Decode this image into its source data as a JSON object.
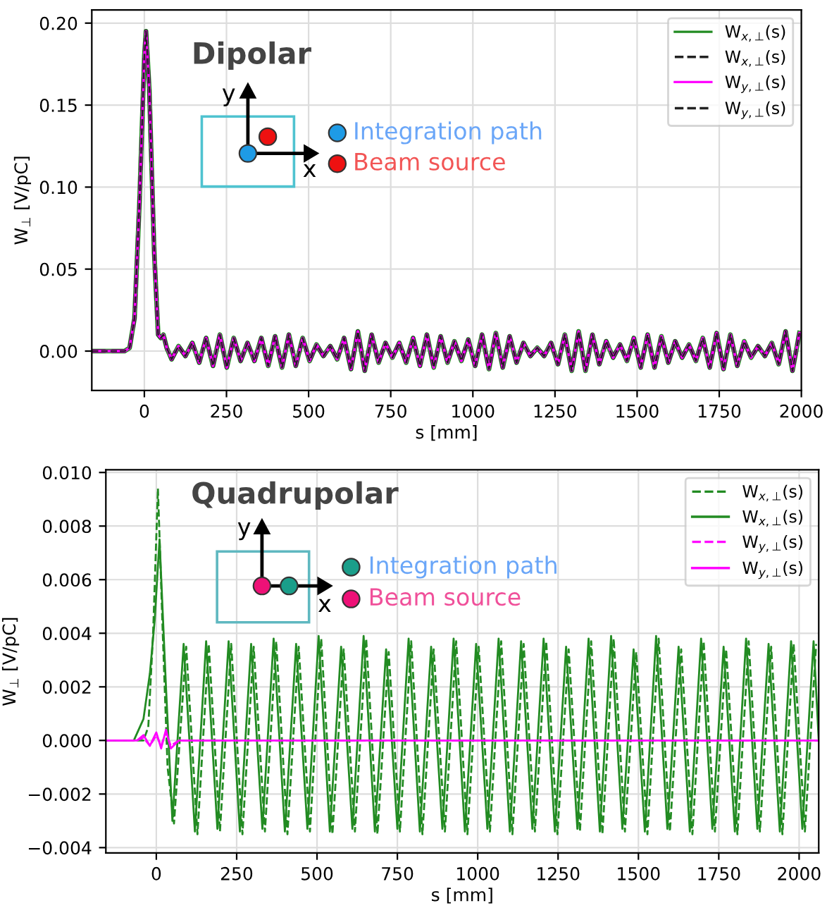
{
  "chart_data": [
    {
      "type": "line",
      "xlabel": "s [mm]",
      "ylabel": "W$_{⊥}$ [V/pC]",
      "annotations": [
        "Dipolar",
        "y",
        "x",
        "Integration path",
        "Beam source"
      ],
      "xlim": [
        -160,
        2000
      ],
      "ylim": [
        -0.024,
        0.208
      ],
      "xticks": [
        0,
        250,
        500,
        750,
        1000,
        1250,
        1500,
        1750,
        2000
      ],
      "yticks": [
        {
          "value": 0,
          "label": "0.00"
        },
        {
          "value": 0.05,
          "label": "0.05"
        },
        {
          "value": 0.1,
          "label": "0.10"
        },
        {
          "value": 0.15,
          "label": "0.15"
        },
        {
          "value": 0.2,
          "label": "0.20"
        }
      ],
      "grid": true,
      "legend": "top right",
      "x": [
        -160,
        -60,
        -45,
        -30,
        -15,
        0,
        5,
        15,
        30,
        42,
        50,
        58,
        68,
        83,
        104,
        125,
        146,
        167,
        188,
        209,
        230,
        251,
        272,
        293,
        314,
        335,
        356,
        377,
        398,
        419,
        440,
        461,
        482,
        503,
        524,
        545,
        566,
        587,
        608,
        629,
        650,
        671,
        692,
        713,
        734,
        755,
        776,
        797,
        818,
        839,
        860,
        881,
        902,
        923,
        944,
        965,
        986,
        1007,
        1028,
        1049,
        1070,
        1091,
        1112,
        1133,
        1154,
        1175,
        1196,
        1217,
        1238,
        1259,
        1280,
        1301,
        1322,
        1343,
        1364,
        1385,
        1406,
        1427,
        1448,
        1469,
        1490,
        1511,
        1532,
        1553,
        1574,
        1595,
        1616,
        1637,
        1658,
        1679,
        1700,
        1721,
        1742,
        1763,
        1784,
        1805,
        1826,
        1847,
        1868,
        1889,
        1910,
        1931,
        1952,
        1973,
        1994
      ],
      "series": [
        {
          "name": "W$_{x,⊥}$(s)",
          "color": "#228b22",
          "line_style": "solid",
          "values": [
            0,
            0,
            0.002,
            0.02,
            0.09,
            0.18,
            0.195,
            0.16,
            0.06,
            0.01,
            0.008,
            0.01,
            0.002,
            -0.005,
            0.003,
            -0.003,
            0.005,
            -0.007,
            0.008,
            -0.009,
            0.01,
            -0.01,
            0.008,
            -0.006,
            0.005,
            -0.006,
            0.008,
            -0.009,
            0.009,
            -0.01,
            0.01,
            -0.009,
            0.008,
            -0.006,
            0.004,
            -0.003,
            0.003,
            -0.005,
            0.008,
            -0.011,
            0.012,
            -0.012,
            0.01,
            -0.007,
            0.005,
            -0.004,
            0.005,
            -0.007,
            0.008,
            -0.009,
            0.01,
            -0.01,
            0.009,
            -0.007,
            0.006,
            -0.006,
            0.007,
            -0.009,
            0.01,
            -0.011,
            0.011,
            -0.01,
            0.009,
            -0.007,
            0.005,
            -0.003,
            0.002,
            -0.003,
            0.005,
            -0.008,
            0.01,
            -0.012,
            0.012,
            -0.012,
            0.01,
            -0.008,
            0.006,
            -0.004,
            0.004,
            -0.006,
            0.008,
            -0.01,
            0.01,
            -0.01,
            0.009,
            -0.007,
            0.006,
            -0.004,
            0.004,
            -0.006,
            0.008,
            -0.01,
            0.011,
            -0.011,
            0.01,
            -0.009,
            0.006,
            -0.004,
            0.003,
            -0.003,
            0.005,
            -0.008,
            0.012,
            -0.012,
            0.011
          ]
        },
        {
          "name": "W$_{x,⊥}$(s)",
          "color": "#222222",
          "line_style": "dashed",
          "values": [
            0,
            0,
            0.002,
            0.02,
            0.09,
            0.18,
            0.195,
            0.16,
            0.06,
            0.01,
            0.008,
            0.01,
            0.002,
            -0.005,
            0.003,
            -0.003,
            0.005,
            -0.007,
            0.008,
            -0.009,
            0.01,
            -0.01,
            0.008,
            -0.006,
            0.005,
            -0.006,
            0.008,
            -0.009,
            0.009,
            -0.01,
            0.01,
            -0.009,
            0.008,
            -0.006,
            0.004,
            -0.003,
            0.003,
            -0.005,
            0.008,
            -0.011,
            0.012,
            -0.012,
            0.01,
            -0.007,
            0.005,
            -0.004,
            0.005,
            -0.007,
            0.008,
            -0.009,
            0.01,
            -0.01,
            0.009,
            -0.007,
            0.006,
            -0.006,
            0.007,
            -0.009,
            0.01,
            -0.011,
            0.011,
            -0.01,
            0.009,
            -0.007,
            0.005,
            -0.003,
            0.002,
            -0.003,
            0.005,
            -0.008,
            0.01,
            -0.012,
            0.012,
            -0.012,
            0.01,
            -0.008,
            0.006,
            -0.004,
            0.004,
            -0.006,
            0.008,
            -0.01,
            0.01,
            -0.01,
            0.009,
            -0.007,
            0.006,
            -0.004,
            0.004,
            -0.006,
            0.008,
            -0.01,
            0.011,
            -0.011,
            0.01,
            -0.009,
            0.006,
            -0.004,
            0.003,
            -0.003,
            0.005,
            -0.008,
            0.012,
            -0.012,
            0.011
          ]
        },
        {
          "name": "W$_{y,⊥}$(s)",
          "color": "#ff00ff",
          "line_style": "solid",
          "values": [
            0,
            0,
            0.002,
            0.02,
            0.09,
            0.18,
            0.195,
            0.16,
            0.06,
            0.01,
            0.008,
            0.01,
            0.002,
            -0.005,
            0.003,
            -0.003,
            0.005,
            -0.007,
            0.008,
            -0.009,
            0.01,
            -0.01,
            0.008,
            -0.006,
            0.005,
            -0.006,
            0.008,
            -0.009,
            0.009,
            -0.01,
            0.01,
            -0.009,
            0.008,
            -0.006,
            0.004,
            -0.003,
            0.003,
            -0.005,
            0.008,
            -0.011,
            0.012,
            -0.012,
            0.01,
            -0.007,
            0.005,
            -0.004,
            0.005,
            -0.007,
            0.008,
            -0.009,
            0.01,
            -0.01,
            0.009,
            -0.007,
            0.006,
            -0.006,
            0.007,
            -0.009,
            0.01,
            -0.011,
            0.011,
            -0.01,
            0.009,
            -0.007,
            0.005,
            -0.003,
            0.002,
            -0.003,
            0.005,
            -0.008,
            0.01,
            -0.012,
            0.012,
            -0.012,
            0.01,
            -0.008,
            0.006,
            -0.004,
            0.004,
            -0.006,
            0.008,
            -0.01,
            0.01,
            -0.01,
            0.009,
            -0.007,
            0.006,
            -0.004,
            0.004,
            -0.006,
            0.008,
            -0.01,
            0.011,
            -0.011,
            0.01,
            -0.009,
            0.006,
            -0.004,
            0.003,
            -0.003,
            0.005,
            -0.008,
            0.012,
            -0.012,
            0.011
          ]
        },
        {
          "name": "W$_{y,⊥}$(s)",
          "color": "#222222",
          "line_style": "dashed",
          "values": [
            0,
            0,
            0.002,
            0.02,
            0.09,
            0.18,
            0.195,
            0.16,
            0.06,
            0.01,
            0.008,
            0.01,
            0.002,
            -0.005,
            0.003,
            -0.003,
            0.005,
            -0.007,
            0.008,
            -0.009,
            0.01,
            -0.01,
            0.008,
            -0.006,
            0.005,
            -0.006,
            0.008,
            -0.009,
            0.009,
            -0.01,
            0.01,
            -0.009,
            0.008,
            -0.006,
            0.004,
            -0.003,
            0.003,
            -0.005,
            0.008,
            -0.011,
            0.012,
            -0.012,
            0.01,
            -0.007,
            0.005,
            -0.004,
            0.005,
            -0.007,
            0.008,
            -0.009,
            0.01,
            -0.01,
            0.009,
            -0.007,
            0.006,
            -0.006,
            0.007,
            -0.009,
            0.01,
            -0.011,
            0.011,
            -0.01,
            0.009,
            -0.007,
            0.005,
            -0.003,
            0.002,
            -0.003,
            0.005,
            -0.008,
            0.01,
            -0.012,
            0.012,
            -0.012,
            0.01,
            -0.008,
            0.006,
            -0.004,
            0.004,
            -0.006,
            0.008,
            -0.01,
            0.01,
            -0.01,
            0.009,
            -0.007,
            0.006,
            -0.004,
            0.004,
            -0.006,
            0.008,
            -0.01,
            0.011,
            -0.011,
            0.01,
            -0.009,
            0.006,
            -0.004,
            0.003,
            -0.003,
            0.005,
            -0.008,
            0.012,
            -0.012,
            0.011
          ]
        }
      ]
    },
    {
      "type": "line",
      "xlabel": "s [mm]",
      "ylabel": "W$_{⊥}$ [V/pC]",
      "annotations": [
        "Quadrupolar",
        "y",
        "x",
        "Integration path",
        "Beam source"
      ],
      "xlim": [
        -157,
        2061
      ],
      "ylim": [
        -0.0042,
        0.0101
      ],
      "xticks": [
        0,
        250,
        500,
        750,
        1000,
        1250,
        1500,
        1750,
        2000
      ],
      "yticks": [
        {
          "value": -0.004,
          "label": "−0.004"
        },
        {
          "value": -0.002,
          "label": "−0.002"
        },
        {
          "value": 0,
          "label": "0.000"
        },
        {
          "value": 0.002,
          "label": "0.002"
        },
        {
          "value": 0.004,
          "label": "0.004"
        },
        {
          "value": 0.006,
          "label": "0.006"
        },
        {
          "value": 0.008,
          "label": "0.008"
        },
        {
          "value": 0.01,
          "label": "0.010"
        }
      ],
      "grid": true,
      "legend": "top right",
      "series": [
        {
          "name": "W$_{x,⊥}$(s)",
          "color": "#228b22",
          "line_style": "dashed",
          "x": [
            -157,
            -40,
            -25,
            -10,
            5,
            20,
            35,
            55,
            93,
            128,
            163,
            198,
            233,
            268,
            303,
            338,
            373,
            408,
            443,
            478,
            513,
            548,
            583,
            618,
            653,
            688,
            723,
            758,
            793,
            828,
            863,
            898,
            933,
            968,
            1003,
            1038,
            1073,
            1108,
            1143,
            1178,
            1213,
            1248,
            1283,
            1318,
            1353,
            1388,
            1423,
            1458,
            1493,
            1528,
            1563,
            1598,
            1633,
            1668,
            1703,
            1738,
            1773,
            1808,
            1843,
            1878,
            1913,
            1948,
            1983,
            2018,
            2053
          ],
          "values": [
            0,
            0,
            0.0005,
            0.004,
            0.0094,
            0.004,
            -0.001,
            -0.0031,
            0.0035,
            -0.0035,
            0.0036,
            -0.0034,
            0.0036,
            -0.0035,
            0.0035,
            -0.0034,
            0.0037,
            -0.0035,
            0.0035,
            -0.0034,
            0.0038,
            -0.0035,
            0.0034,
            -0.0034,
            0.0038,
            -0.0035,
            0.0033,
            -0.0034,
            0.0037,
            -0.0035,
            0.0034,
            -0.0034,
            0.0037,
            -0.0035,
            0.0035,
            -0.0034,
            0.0037,
            -0.0035,
            0.0036,
            -0.0034,
            0.0037,
            -0.0035,
            0.0034,
            -0.0034,
            0.0037,
            -0.0035,
            0.0038,
            -0.0034,
            0.0033,
            -0.0035,
            0.0038,
            -0.0034,
            0.0034,
            -0.0035,
            0.0037,
            -0.0034,
            0.0034,
            -0.0035,
            0.0037,
            -0.0034,
            0.0035,
            -0.0035,
            0.0036,
            -0.0034,
            0.0036
          ]
        },
        {
          "name": "W$_{x,⊥}$(s)",
          "color": "#228b22",
          "line_style": "solid",
          "x": [
            -157,
            -70,
            -40,
            -20,
            -5,
            10,
            30,
            50,
            85,
            120,
            155,
            190,
            225,
            260,
            295,
            330,
            365,
            400,
            435,
            470,
            505,
            540,
            575,
            610,
            645,
            680,
            715,
            750,
            785,
            820,
            855,
            890,
            925,
            960,
            995,
            1030,
            1065,
            1100,
            1135,
            1170,
            1205,
            1240,
            1275,
            1310,
            1345,
            1380,
            1415,
            1450,
            1485,
            1520,
            1555,
            1590,
            1625,
            1660,
            1695,
            1730,
            1765,
            1800,
            1835,
            1870,
            1905,
            1940,
            1975,
            2010,
            2045,
            2061
          ],
          "values": [
            0,
            0,
            0.0008,
            0.0025,
            0.0045,
            0.0075,
            0.002,
            -0.003,
            0.0036,
            -0.0034,
            0.0037,
            -0.0033,
            0.0037,
            -0.0034,
            0.0036,
            -0.0033,
            0.0038,
            -0.0034,
            0.0036,
            -0.0033,
            0.0039,
            -0.0034,
            0.0035,
            -0.0033,
            0.0039,
            -0.0034,
            0.0034,
            -0.0033,
            0.0038,
            -0.0034,
            0.0035,
            -0.0033,
            0.0038,
            -0.0034,
            0.0036,
            -0.0033,
            0.0038,
            -0.0034,
            0.0037,
            -0.0033,
            0.0038,
            -0.0034,
            0.0035,
            -0.0033,
            0.0038,
            -0.0034,
            0.0039,
            -0.0033,
            0.0034,
            -0.0034,
            0.0039,
            -0.0033,
            0.0035,
            -0.0034,
            0.0038,
            -0.0033,
            0.0035,
            -0.0034,
            0.0038,
            -0.0033,
            0.0036,
            -0.0034,
            0.0037,
            -0.0033,
            0.0037,
            0.0
          ]
        },
        {
          "name": "W$_{y,⊥}$(s)",
          "color": "#ff00ff",
          "line_style": "dashed",
          "x": [
            -157,
            -60,
            -40,
            -20,
            0,
            15,
            30,
            45,
            70,
            2061
          ],
          "values": [
            0,
            0,
            0.0001,
            -0.0002,
            0.0002,
            -0.0002,
            0.0003,
            -0.0002,
            0,
            0
          ]
        },
        {
          "name": "W$_{y,⊥}$(s)",
          "color": "#ff00ff",
          "line_style": "solid",
          "x": [
            -157,
            -60,
            -40,
            -20,
            0,
            15,
            30,
            45,
            70,
            2061
          ],
          "values": [
            0,
            0,
            0.0002,
            -0.0002,
            0.0003,
            -0.0003,
            0.0004,
            -0.0003,
            0,
            0
          ]
        }
      ]
    }
  ]
}
